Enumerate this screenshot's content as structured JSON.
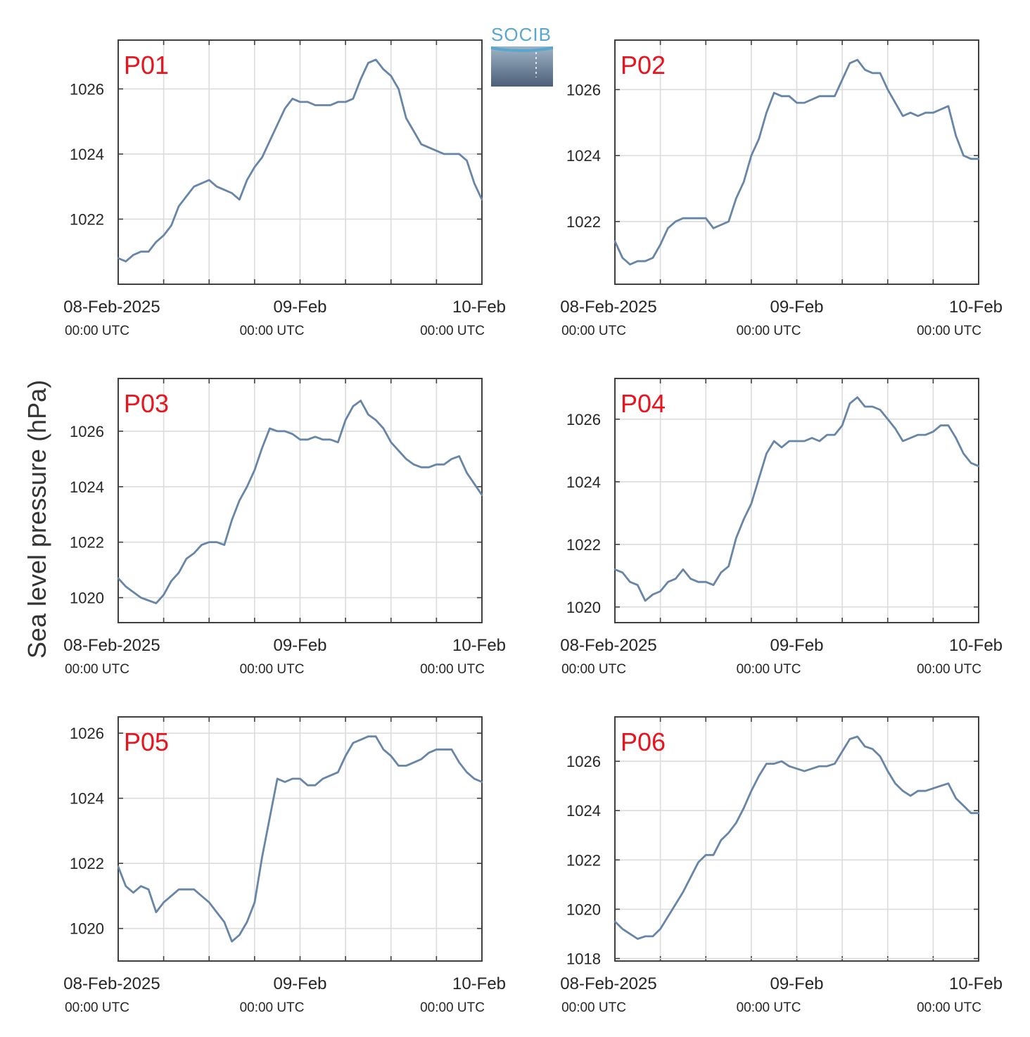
{
  "ylabel": "Sea level pressure (hPa)",
  "logo": {
    "text": "SOCIB"
  },
  "colors": {
    "line": "#6785a6",
    "panel_label": "#e8141e",
    "grid": "#dcdcdc",
    "frame": "#404040"
  },
  "x_ticks": [
    {
      "hour": 0,
      "date": "08-Feb-2025",
      "time": "00:00 UTC"
    },
    {
      "hour": 24,
      "date": "09-Feb",
      "time": "00:00 UTC"
    },
    {
      "hour": 48,
      "date": "10-Feb",
      "time": "00:00 UTC"
    }
  ],
  "chart_data": [
    {
      "type": "line",
      "title": "P01",
      "ylim": [
        1020.0,
        1027.5
      ],
      "yticks": [
        1022,
        1024,
        1026
      ],
      "xlim": [
        "2025-02-08 00:00 UTC",
        "2025-02-10 00:00 UTC"
      ],
      "grid": true,
      "series": [
        {
          "x_hours": [
            0,
            1,
            2,
            3,
            4,
            5,
            6,
            7,
            8,
            9,
            10,
            11,
            12,
            13,
            14,
            15,
            16,
            17,
            18,
            19,
            20,
            21,
            22,
            23,
            24,
            25,
            26,
            27,
            28,
            29,
            30,
            31,
            32,
            33,
            34,
            35,
            36,
            37,
            38,
            39,
            40,
            41,
            42,
            43,
            44,
            45,
            46,
            47,
            48
          ],
          "y_hpa": [
            1020.8,
            1020.7,
            1020.9,
            1021.0,
            1021.0,
            1021.3,
            1021.5,
            1021.8,
            1022.4,
            1022.7,
            1023.0,
            1023.1,
            1023.2,
            1023.0,
            1022.9,
            1022.8,
            1022.6,
            1023.2,
            1023.6,
            1023.9,
            1024.4,
            1024.9,
            1025.4,
            1025.7,
            1025.6,
            1025.6,
            1025.5,
            1025.5,
            1025.5,
            1025.6,
            1025.6,
            1025.7,
            1026.3,
            1026.8,
            1026.9,
            1026.6,
            1026.4,
            1026.0,
            1025.1,
            1024.7,
            1024.3,
            1024.2,
            1024.1,
            1024.0,
            1024.0,
            1024.0,
            1023.8,
            1023.1,
            1022.6
          ]
        }
      ]
    },
    {
      "type": "line",
      "title": "P02",
      "ylim": [
        1020.1,
        1027.5
      ],
      "yticks": [
        1022,
        1024,
        1026
      ],
      "xlim": [
        "2025-02-08 00:00 UTC",
        "2025-02-10 00:00 UTC"
      ],
      "grid": true,
      "series": [
        {
          "x_hours": [
            0,
            1,
            2,
            3,
            4,
            5,
            6,
            7,
            8,
            9,
            10,
            11,
            12,
            13,
            14,
            15,
            16,
            17,
            18,
            19,
            20,
            21,
            22,
            23,
            24,
            25,
            26,
            27,
            28,
            29,
            30,
            31,
            32,
            33,
            34,
            35,
            36,
            37,
            38,
            39,
            40,
            41,
            42,
            43,
            44,
            45,
            46,
            47,
            48
          ],
          "y_hpa": [
            1021.4,
            1020.9,
            1020.7,
            1020.8,
            1020.8,
            1020.9,
            1021.3,
            1021.8,
            1022.0,
            1022.1,
            1022.1,
            1022.1,
            1022.1,
            1021.8,
            1021.9,
            1022.0,
            1022.7,
            1023.2,
            1024.0,
            1024.5,
            1025.3,
            1025.9,
            1025.8,
            1025.8,
            1025.6,
            1025.6,
            1025.7,
            1025.8,
            1025.8,
            1025.8,
            1026.3,
            1026.8,
            1026.9,
            1026.6,
            1026.5,
            1026.5,
            1026.0,
            1025.6,
            1025.2,
            1025.3,
            1025.2,
            1025.3,
            1025.3,
            1025.4,
            1025.5,
            1024.6,
            1024.0,
            1023.9,
            1023.9
          ]
        }
      ]
    },
    {
      "type": "line",
      "title": "P03",
      "ylim": [
        1019.1,
        1027.9
      ],
      "yticks": [
        1020,
        1022,
        1024,
        1026
      ],
      "xlim": [
        "2025-02-08 00:00 UTC",
        "2025-02-10 00:00 UTC"
      ],
      "grid": true,
      "series": [
        {
          "x_hours": [
            0,
            1,
            2,
            3,
            4,
            5,
            6,
            7,
            8,
            9,
            10,
            11,
            12,
            13,
            14,
            15,
            16,
            17,
            18,
            19,
            20,
            21,
            22,
            23,
            24,
            25,
            26,
            27,
            28,
            29,
            30,
            31,
            32,
            33,
            34,
            35,
            36,
            37,
            38,
            39,
            40,
            41,
            42,
            43,
            44,
            45,
            46,
            47,
            48
          ],
          "y_hpa": [
            1020.7,
            1020.4,
            1020.2,
            1020.0,
            1019.9,
            1019.8,
            1020.1,
            1020.6,
            1020.9,
            1021.4,
            1021.6,
            1021.9,
            1022.0,
            1022.0,
            1021.9,
            1022.8,
            1023.5,
            1024.0,
            1024.6,
            1025.4,
            1026.1,
            1026.0,
            1026.0,
            1025.9,
            1025.7,
            1025.7,
            1025.8,
            1025.7,
            1025.7,
            1025.6,
            1026.4,
            1026.9,
            1027.1,
            1026.6,
            1026.4,
            1026.1,
            1025.6,
            1025.3,
            1025.0,
            1024.8,
            1024.7,
            1024.7,
            1024.8,
            1024.8,
            1025.0,
            1025.1,
            1024.5,
            1024.1,
            1023.7
          ]
        }
      ]
    },
    {
      "type": "line",
      "title": "P04",
      "ylim": [
        1019.5,
        1027.3
      ],
      "yticks": [
        1020,
        1022,
        1024,
        1026
      ],
      "xlim": [
        "2025-02-08 00:00 UTC",
        "2025-02-10 00:00 UTC"
      ],
      "grid": true,
      "series": [
        {
          "x_hours": [
            0,
            1,
            2,
            3,
            4,
            5,
            6,
            7,
            8,
            9,
            10,
            11,
            12,
            13,
            14,
            15,
            16,
            17,
            18,
            19,
            20,
            21,
            22,
            23,
            24,
            25,
            26,
            27,
            28,
            29,
            30,
            31,
            32,
            33,
            34,
            35,
            36,
            37,
            38,
            39,
            40,
            41,
            42,
            43,
            44,
            45,
            46,
            47,
            48
          ],
          "y_hpa": [
            1021.2,
            1021.1,
            1020.8,
            1020.7,
            1020.2,
            1020.4,
            1020.5,
            1020.8,
            1020.9,
            1021.2,
            1020.9,
            1020.8,
            1020.8,
            1020.7,
            1021.1,
            1021.3,
            1022.2,
            1022.8,
            1023.3,
            1024.1,
            1024.9,
            1025.3,
            1025.1,
            1025.3,
            1025.3,
            1025.3,
            1025.4,
            1025.3,
            1025.5,
            1025.5,
            1025.8,
            1026.5,
            1026.7,
            1026.4,
            1026.4,
            1026.3,
            1026.0,
            1025.7,
            1025.3,
            1025.4,
            1025.5,
            1025.5,
            1025.6,
            1025.8,
            1025.8,
            1025.4,
            1024.9,
            1024.6,
            1024.5
          ]
        }
      ]
    },
    {
      "type": "line",
      "title": "P05",
      "ylim": [
        1019.0,
        1026.5
      ],
      "yticks": [
        1020,
        1022,
        1024,
        1026
      ],
      "xlim": [
        "2025-02-08 00:00 UTC",
        "2025-02-10 00:00 UTC"
      ],
      "grid": true,
      "series": [
        {
          "x_hours": [
            0,
            1,
            2,
            3,
            4,
            5,
            6,
            7,
            8,
            9,
            10,
            11,
            12,
            13,
            14,
            15,
            16,
            17,
            18,
            19,
            20,
            21,
            22,
            23,
            24,
            25,
            26,
            27,
            28,
            29,
            30,
            31,
            32,
            33,
            34,
            35,
            36,
            37,
            38,
            39,
            40,
            41,
            42,
            43,
            44,
            45,
            46,
            47,
            48
          ],
          "y_hpa": [
            1021.9,
            1021.3,
            1021.1,
            1021.3,
            1021.2,
            1020.5,
            1020.8,
            1021.0,
            1021.2,
            1021.2,
            1021.2,
            1021.0,
            1020.8,
            1020.5,
            1020.2,
            1019.6,
            1019.8,
            1020.2,
            1020.8,
            1022.2,
            1023.4,
            1024.6,
            1024.5,
            1024.6,
            1024.6,
            1024.4,
            1024.4,
            1024.6,
            1024.7,
            1024.8,
            1025.3,
            1025.7,
            1025.8,
            1025.9,
            1025.9,
            1025.5,
            1025.3,
            1025.0,
            1025.0,
            1025.1,
            1025.2,
            1025.4,
            1025.5,
            1025.5,
            1025.5,
            1025.1,
            1024.8,
            1024.6,
            1024.5
          ]
        }
      ]
    },
    {
      "type": "line",
      "title": "P06",
      "ylim": [
        1017.9,
        1027.8
      ],
      "yticks": [
        1018,
        1020,
        1022,
        1024,
        1026
      ],
      "xlim": [
        "2025-02-08 00:00 UTC",
        "2025-02-10 00:00 UTC"
      ],
      "grid": true,
      "series": [
        {
          "x_hours": [
            0,
            1,
            2,
            3,
            4,
            5,
            6,
            7,
            8,
            9,
            10,
            11,
            12,
            13,
            14,
            15,
            16,
            17,
            18,
            19,
            20,
            21,
            22,
            23,
            24,
            25,
            26,
            27,
            28,
            29,
            30,
            31,
            32,
            33,
            34,
            35,
            36,
            37,
            38,
            39,
            40,
            41,
            42,
            43,
            44,
            45,
            46,
            47,
            48
          ],
          "y_hpa": [
            1019.5,
            1019.2,
            1019.0,
            1018.8,
            1018.9,
            1018.9,
            1019.2,
            1019.7,
            1020.2,
            1020.7,
            1021.3,
            1021.9,
            1022.2,
            1022.2,
            1022.8,
            1023.1,
            1023.5,
            1024.1,
            1024.8,
            1025.4,
            1025.9,
            1025.9,
            1026.0,
            1025.8,
            1025.7,
            1025.6,
            1025.7,
            1025.8,
            1025.8,
            1025.9,
            1026.4,
            1026.9,
            1027.0,
            1026.6,
            1026.5,
            1026.2,
            1025.6,
            1025.1,
            1024.8,
            1024.6,
            1024.8,
            1024.8,
            1024.9,
            1025.0,
            1025.1,
            1024.5,
            1024.2,
            1023.9,
            1023.9
          ]
        }
      ]
    }
  ]
}
